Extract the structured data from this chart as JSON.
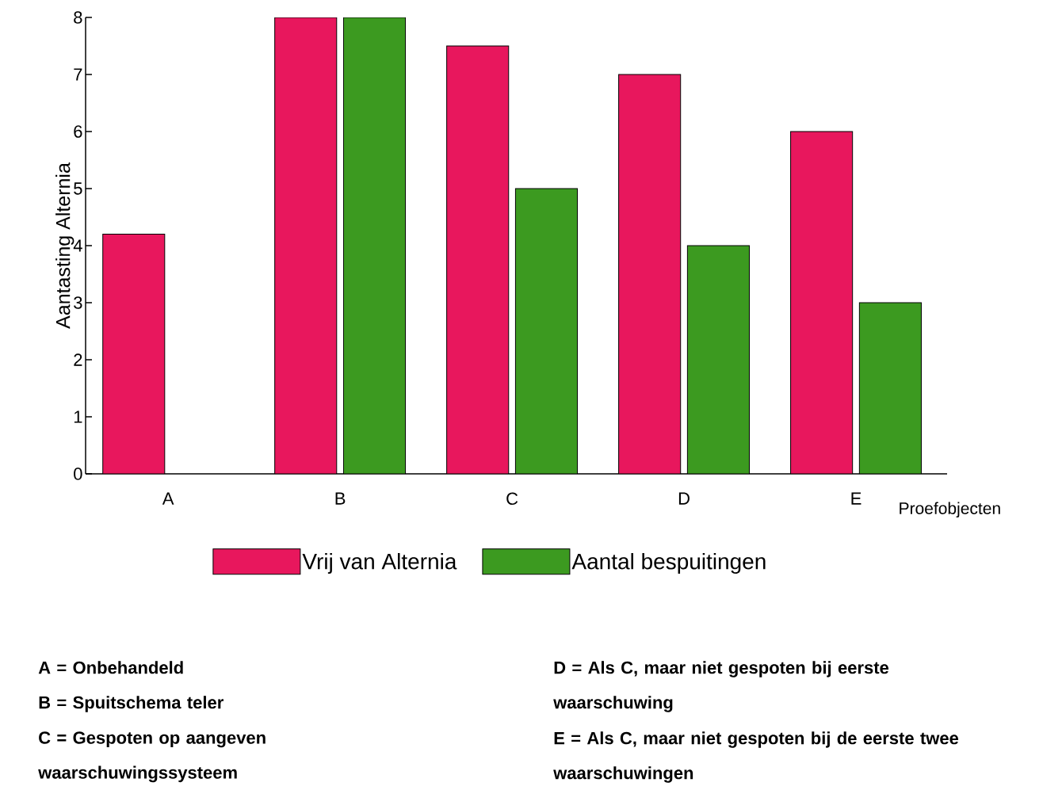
{
  "chart_data": {
    "type": "bar",
    "xlabel": "Proefobjecten",
    "ylabel": "Aantasting Alternia",
    "categories": [
      "A",
      "B",
      "C",
      "D",
      "E"
    ],
    "series": [
      {
        "name": "Vrij van Alternia",
        "color": "#e8175d",
        "values": [
          4.2,
          8,
          7.5,
          7,
          6
        ]
      },
      {
        "name": "Aantal bespuitingen",
        "color": "#3c9a20",
        "values": [
          null,
          8,
          5,
          4,
          3
        ]
      }
    ],
    "ylim": [
      0,
      8
    ],
    "yticks": [
      0,
      1,
      2,
      3,
      4,
      5,
      6,
      7,
      8
    ],
    "legend": "bottom",
    "annotations": [
      "A = Onbehandeld",
      "B = Spuitschema teler",
      "C = Gespoten op aangeven waarschuwingssysteem",
      "D = Als C, maar niet gespoten bij eerste waarschuwing",
      "E = Als C, maar niet gespoten bij de eerste twee waarschuwingen"
    ]
  }
}
